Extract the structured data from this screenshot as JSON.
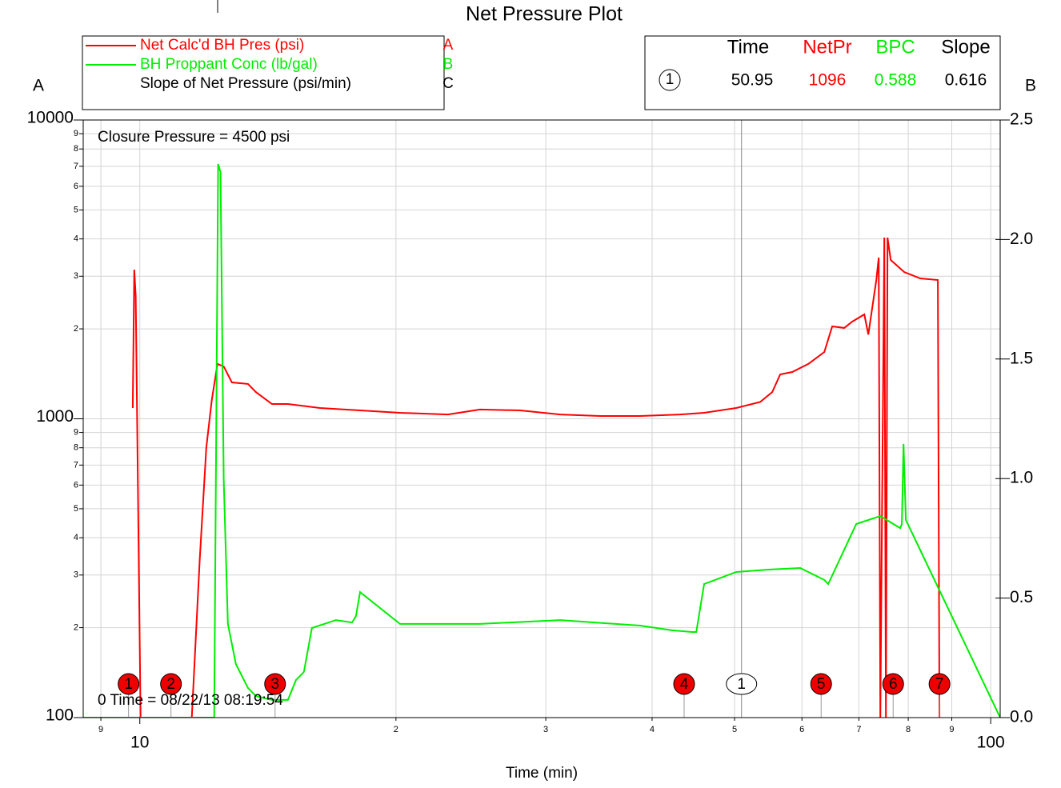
{
  "chart_data": {
    "type": "line",
    "title": "Net Pressure Plot",
    "xlabel": "Time (min)",
    "ylabel": "A",
    "y2label": "B",
    "xscale": "log",
    "yscale": "log",
    "grid": true,
    "xlim": [
      8.58,
      102.6
    ],
    "xticks": [
      9,
      10,
      {
        "value": 20,
        "label": "2"
      },
      {
        "value": 30,
        "label": "3"
      },
      {
        "value": 40,
        "label": "4"
      },
      {
        "value": 50,
        "label": "5"
      },
      {
        "value": 60,
        "label": "6"
      },
      {
        "value": 70,
        "label": "7"
      },
      {
        "value": 80,
        "label": "8"
      },
      {
        "value": 90,
        "label": "9"
      },
      100
    ],
    "ylim": [
      100,
      10000
    ],
    "yticks": [
      100,
      {
        "value": 200,
        "label": "2"
      },
      {
        "value": 300,
        "label": "3"
      },
      {
        "value": 400,
        "label": "4"
      },
      {
        "value": 500,
        "label": "5"
      },
      {
        "value": 600,
        "label": "6"
      },
      {
        "value": 700,
        "label": "7"
      },
      {
        "value": 800,
        "label": "8"
      },
      {
        "value": 900,
        "label": "9"
      },
      1000,
      {
        "value": 2000,
        "label": "2"
      },
      {
        "value": 3000,
        "label": "3"
      },
      {
        "value": 4000,
        "label": "4"
      },
      {
        "value": 5000,
        "label": "5"
      },
      {
        "value": 6000,
        "label": "6"
      },
      {
        "value": 7000,
        "label": "7"
      },
      {
        "value": 8000,
        "label": "8"
      },
      {
        "value": 9000,
        "label": "9"
      },
      10000
    ],
    "y2lim": [
      0,
      2.5
    ],
    "y2ticks": [
      {
        "value": 0,
        "label": "0.0"
      },
      {
        "value": 0.5,
        "label": "0.5"
      },
      {
        "value": 1,
        "label": "1.0"
      },
      {
        "value": 1.5,
        "label": "1.5"
      },
      {
        "value": 2,
        "label": "2.0"
      },
      2.5
    ],
    "series": [
      {
        "name": "Net Calc'd BH Pres (psi)",
        "letter": "A",
        "color": "#ff0000",
        "x": [
          9.81,
          9.85,
          9.89,
          10.02,
          11.51,
          11.76,
          11.97,
          12.15,
          12.34,
          12.55,
          12.83,
          13.4,
          13.69,
          14.3,
          14.93,
          16.28,
          18.15,
          20.22,
          23.02,
          25.11,
          27.99,
          31.19,
          34.75,
          38.73,
          43.15,
          46.05,
          50.22,
          53.59,
          55.37,
          56.58,
          58.45,
          61.04,
          63.74,
          65.13,
          67.28,
          68.77,
          71.04,
          71.81,
          73.38,
          73.86,
          74.18,
          74.99,
          75.31,
          75.64,
          76.3,
          79.13,
          82.63,
          86.68,
          87.06
        ],
        "values": [
          1087,
          3157,
          2576,
          100,
          100,
          337,
          799,
          1156,
          1526,
          1497,
          1324,
          1308,
          1229,
          1121,
          1121,
          1087,
          1067,
          1047,
          1034,
          1074,
          1067,
          1034,
          1022,
          1022,
          1034,
          1047,
          1087,
          1138,
          1229,
          1408,
          1434,
          1526,
          1673,
          2038,
          2014,
          2115,
          2236,
          1914,
          2914,
          3463,
          100,
          4041,
          100,
          4041,
          3400,
          3099,
          2951,
          2914,
          100
        ]
      },
      {
        "name": "BH Proppant Conc (lb/gal)",
        "letter": "B",
        "color": "#00ee00",
        "axis": "y2",
        "x": [
          8.58,
          12.23,
          12.36,
          12.44,
          12.55,
          12.69,
          12.97,
          13.4,
          13.69,
          14.3,
          14.93,
          15.26,
          15.59,
          15.93,
          17.0,
          17.76,
          17.95,
          18.15,
          20.22,
          25.11,
          31.19,
          38.73,
          42.23,
          44.59,
          45.08,
          46.05,
          50.22,
          54.77,
          59.72,
          63.74,
          64.42,
          69.5,
          74.18,
          78.29,
          78.63,
          78.98,
          79.49,
          102.6
        ],
        "values": [
          0,
          0,
          2.316,
          2.282,
          0.994,
          0.392,
          0.224,
          0.124,
          0.09,
          0.074,
          0.074,
          0.157,
          0.191,
          0.375,
          0.408,
          0.398,
          0.425,
          0.525,
          0.392,
          0.392,
          0.408,
          0.385,
          0.365,
          0.358,
          0.358,
          0.559,
          0.609,
          0.619,
          0.626,
          0.576,
          0.559,
          0.81,
          0.843,
          0.793,
          0.81,
          1.145,
          0.827,
          0
        ]
      },
      {
        "name": "Slope of Net Pressure (psi/min)",
        "letter": "C",
        "color": "#000000"
      }
    ],
    "annotations": [
      "Closure Pressure = 4500 psi",
      "0 Time = 08/22/13 08:19:54"
    ],
    "events": [
      {
        "label": "1",
        "x": 9.7
      },
      {
        "label": "2",
        "x": 10.88
      },
      {
        "label": "3",
        "x": 14.42
      },
      {
        "label": "4",
        "x": 43.62
      },
      {
        "label": "5",
        "x": 63.2
      },
      {
        "label": "6",
        "x": 76.8
      },
      {
        "label": "7",
        "x": 87.06
      }
    ],
    "event_color": "#ee0000",
    "cursor": {
      "label": "1",
      "columns": [
        {
          "name": "Time",
          "color": "#000000",
          "value": 50.95
        },
        {
          "name": "NetPr",
          "color": "#ff0000",
          "value": 1096
        },
        {
          "name": "BPC",
          "color": "#00ee00",
          "value": 0.588
        },
        {
          "name": "Slope",
          "color": "#000000",
          "value": 0.616
        }
      ]
    }
  }
}
